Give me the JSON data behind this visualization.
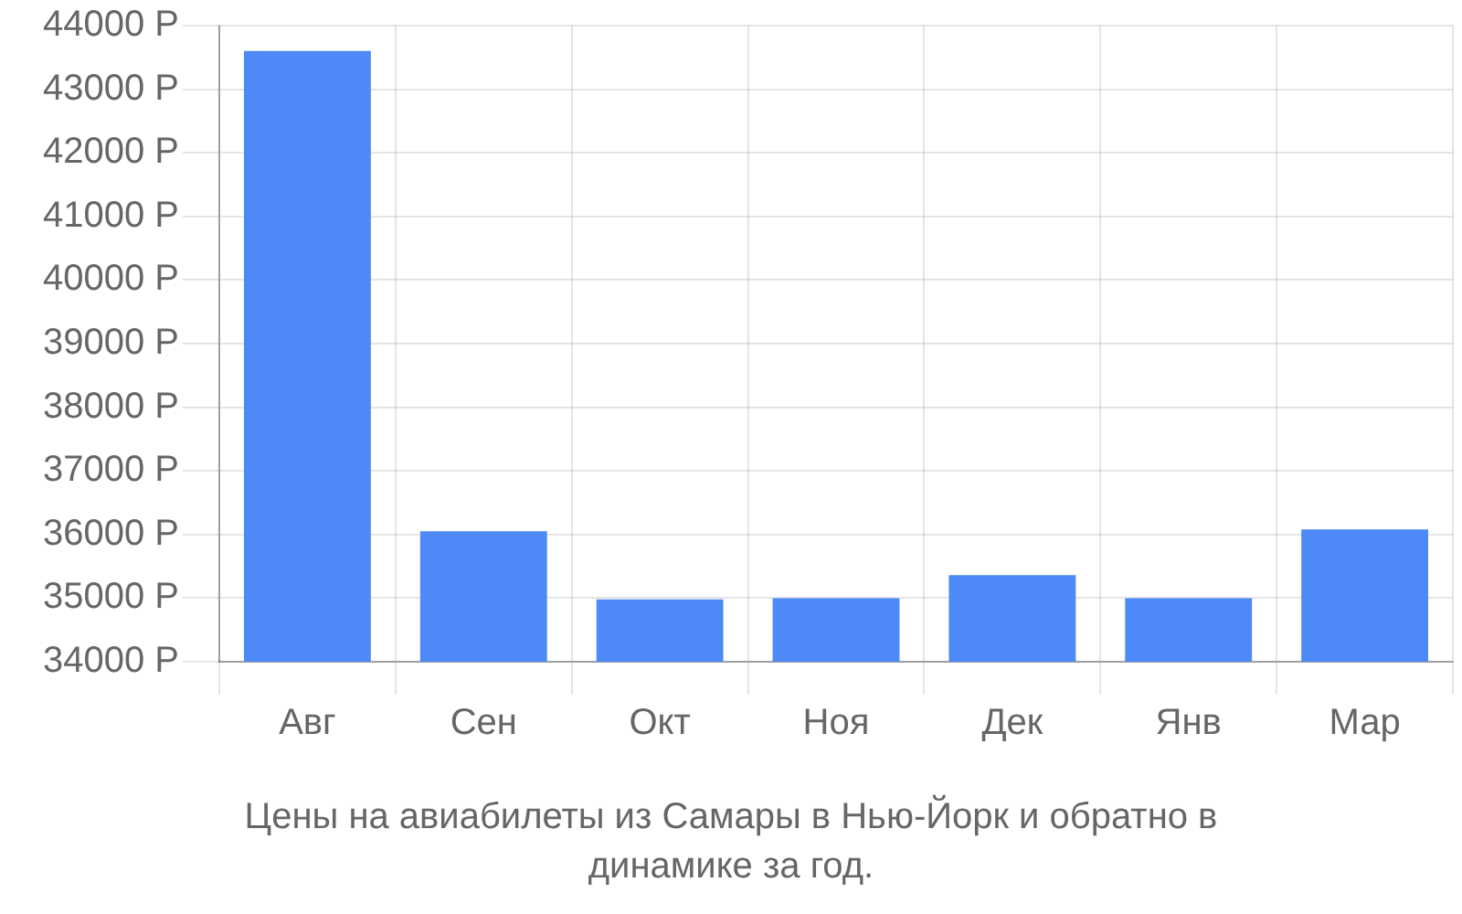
{
  "chart_data": {
    "type": "bar",
    "categories": [
      "Авг",
      "Сен",
      "Окт",
      "Ноя",
      "Дек",
      "Янв",
      "Мар"
    ],
    "values": [
      43600,
      36050,
      34980,
      35000,
      35360,
      35000,
      36080
    ],
    "color": "#4e89f8",
    "ylim": [
      34000,
      44000
    ],
    "yticks": [
      {
        "value": 34000,
        "label": "34000 Р"
      },
      {
        "value": 35000,
        "label": "35000 Р"
      },
      {
        "value": 36000,
        "label": "36000 Р"
      },
      {
        "value": 37000,
        "label": "37000 Р"
      },
      {
        "value": 38000,
        "label": "38000 Р"
      },
      {
        "value": 39000,
        "label": "39000 Р"
      },
      {
        "value": 40000,
        "label": "40000 Р"
      },
      {
        "value": 41000,
        "label": "41000 Р"
      },
      {
        "value": 42000,
        "label": "42000 Р"
      },
      {
        "value": 43000,
        "label": "43000 Р"
      },
      {
        "value": 44000,
        "label": "44000 Р"
      }
    ],
    "grid": true,
    "annotations": [
      "Цены на авиабилеты из Самары в Нью-Йорк и обратно в динамике за год."
    ]
  }
}
